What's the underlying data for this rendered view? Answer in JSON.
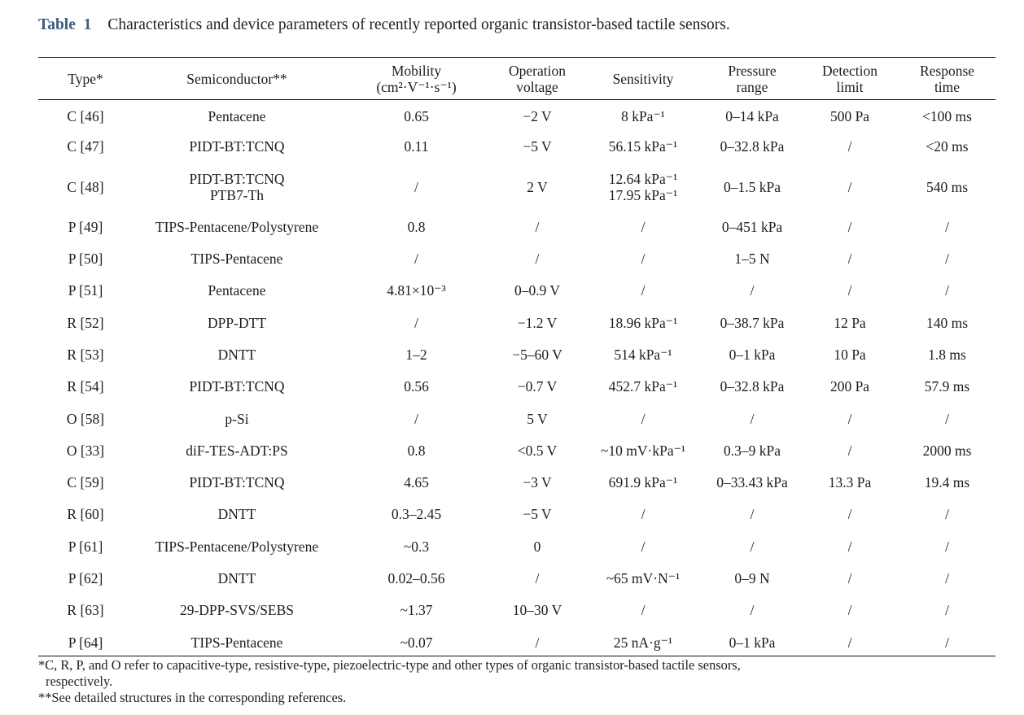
{
  "caption": {
    "label": "Table",
    "number": "1",
    "text": "Characteristics and device parameters of recently reported organic transistor-based tactile sensors."
  },
  "headers": {
    "type": "Type*",
    "semiconductor": "Semiconductor**",
    "mobility_1": "Mobility",
    "mobility_2": "(cm²·V⁻¹·s⁻¹)",
    "operation_1": "Operation",
    "operation_2": "voltage",
    "sensitivity": "Sensitivity",
    "pressure_1": "Pressure",
    "pressure_2": "range",
    "detection_1": "Detection",
    "detection_2": "limit",
    "response_1": "Response",
    "response_2": "time"
  },
  "rows": [
    {
      "type": "C [46]",
      "semi": "Pentacene",
      "semi2": "",
      "mobility": "0.65",
      "voltage": "−2 V",
      "sens": "8 kPa⁻¹",
      "sens2": "",
      "pressure": "0–14 kPa",
      "detection": "500 Pa",
      "response": "<100 ms"
    },
    {
      "type": "C [47]",
      "semi": "PIDT-BT:TCNQ",
      "semi2": "",
      "mobility": "0.11",
      "voltage": "−5 V",
      "sens": "56.15 kPa⁻¹",
      "sens2": "",
      "pressure": "0–32.8 kPa",
      "detection": "/",
      "response": "<20 ms"
    },
    {
      "type": "C [48]",
      "semi": "PIDT-BT:TCNQ",
      "semi2": "PTB7-Th",
      "mobility": "/",
      "voltage": "2 V",
      "sens": "12.64 kPa⁻¹",
      "sens2": "17.95 kPa⁻¹",
      "pressure": "0–1.5 kPa",
      "detection": "/",
      "response": "540 ms"
    },
    {
      "type": "P [49]",
      "semi": "TIPS-Pentacene/Polystyrene",
      "semi2": "",
      "mobility": "0.8",
      "voltage": "/",
      "sens": "/",
      "sens2": "",
      "pressure": "0–451 kPa",
      "detection": "/",
      "response": "/"
    },
    {
      "type": "P [50]",
      "semi": "TIPS-Pentacene",
      "semi2": "",
      "mobility": "/",
      "voltage": "/",
      "sens": "/",
      "sens2": "",
      "pressure": "1–5 N",
      "detection": "/",
      "response": "/"
    },
    {
      "type": "P [51]",
      "semi": "Pentacene",
      "semi2": "",
      "mobility": "4.81×10⁻³",
      "voltage": "0–0.9 V",
      "sens": "/",
      "sens2": "",
      "pressure": "/",
      "detection": "/",
      "response": "/"
    },
    {
      "type": "R [52]",
      "semi": "DPP-DTT",
      "semi2": "",
      "mobility": "/",
      "voltage": "−1.2 V",
      "sens": "18.96 kPa⁻¹",
      "sens2": "",
      "pressure": "0–38.7 kPa",
      "detection": "12 Pa",
      "response": "140 ms"
    },
    {
      "type": "R [53]",
      "semi": "DNTT",
      "semi2": "",
      "mobility": "1–2",
      "voltage": "−5–60 V",
      "sens": "514 kPa⁻¹",
      "sens2": "",
      "pressure": "0–1 kPa",
      "detection": "10 Pa",
      "response": "1.8 ms"
    },
    {
      "type": "R [54]",
      "semi": "PIDT-BT:TCNQ",
      "semi2": "",
      "mobility": "0.56",
      "voltage": "−0.7 V",
      "sens": "452.7 kPa⁻¹",
      "sens2": "",
      "pressure": "0–32.8 kPa",
      "detection": "200 Pa",
      "response": "57.9 ms"
    },
    {
      "type": "O [58]",
      "semi": "p-Si",
      "semi2": "",
      "mobility": "/",
      "voltage": "5 V",
      "sens": "/",
      "sens2": "",
      "pressure": "/",
      "detection": "/",
      "response": "/"
    },
    {
      "type": "O [33]",
      "semi": "diF-TES-ADT:PS",
      "semi2": "",
      "mobility": "0.8",
      "voltage": "<0.5 V",
      "sens": "~10 mV·kPa⁻¹",
      "sens2": "",
      "pressure": "0.3–9 kPa",
      "detection": "/",
      "response": "2000 ms"
    },
    {
      "type": "C [59]",
      "semi": "PIDT-BT:TCNQ",
      "semi2": "",
      "mobility": "4.65",
      "voltage": "−3 V",
      "sens": "691.9 kPa⁻¹",
      "sens2": "",
      "pressure": "0–33.43 kPa",
      "detection": "13.3 Pa",
      "response": "19.4 ms"
    },
    {
      "type": "R [60]",
      "semi": "DNTT",
      "semi2": "",
      "mobility": "0.3–2.45",
      "voltage": "−5 V",
      "sens": "/",
      "sens2": "",
      "pressure": "/",
      "detection": "/",
      "response": "/"
    },
    {
      "type": "P [61]",
      "semi": "TIPS-Pentacene/Polystyrene",
      "semi2": "",
      "mobility": "~0.3",
      "voltage": "0",
      "sens": "/",
      "sens2": "",
      "pressure": "/",
      "detection": "/",
      "response": "/"
    },
    {
      "type": "P [62]",
      "semi": "DNTT",
      "semi2": "",
      "mobility": "0.02–0.56",
      "voltage": "/",
      "sens": "~65 mV·N⁻¹",
      "sens2": "",
      "pressure": "0–9 N",
      "detection": "/",
      "response": "/"
    },
    {
      "type": "R [63]",
      "semi": "29-DPP-SVS/SEBS",
      "semi2": "",
      "mobility": "~1.37",
      "voltage": "10–30 V",
      "sens": "/",
      "sens2": "",
      "pressure": "/",
      "detection": "/",
      "response": "/"
    },
    {
      "type": "P [64]",
      "semi": "TIPS-Pentacene",
      "semi2": "",
      "mobility": "~0.07",
      "voltage": "/",
      "sens": "25 nA·g⁻¹",
      "sens2": "",
      "pressure": "0–1 kPa",
      "detection": "/",
      "response": "/"
    }
  ],
  "footnotes": {
    "note1_line1": "*C, R, P, and O refer to capacitive-type, resistive-type, piezoelectric-type and other types of organic transistor-based tactile sensors,",
    "note1_line2": "respectively.",
    "note2": "**See detailed structures in the corresponding references."
  }
}
